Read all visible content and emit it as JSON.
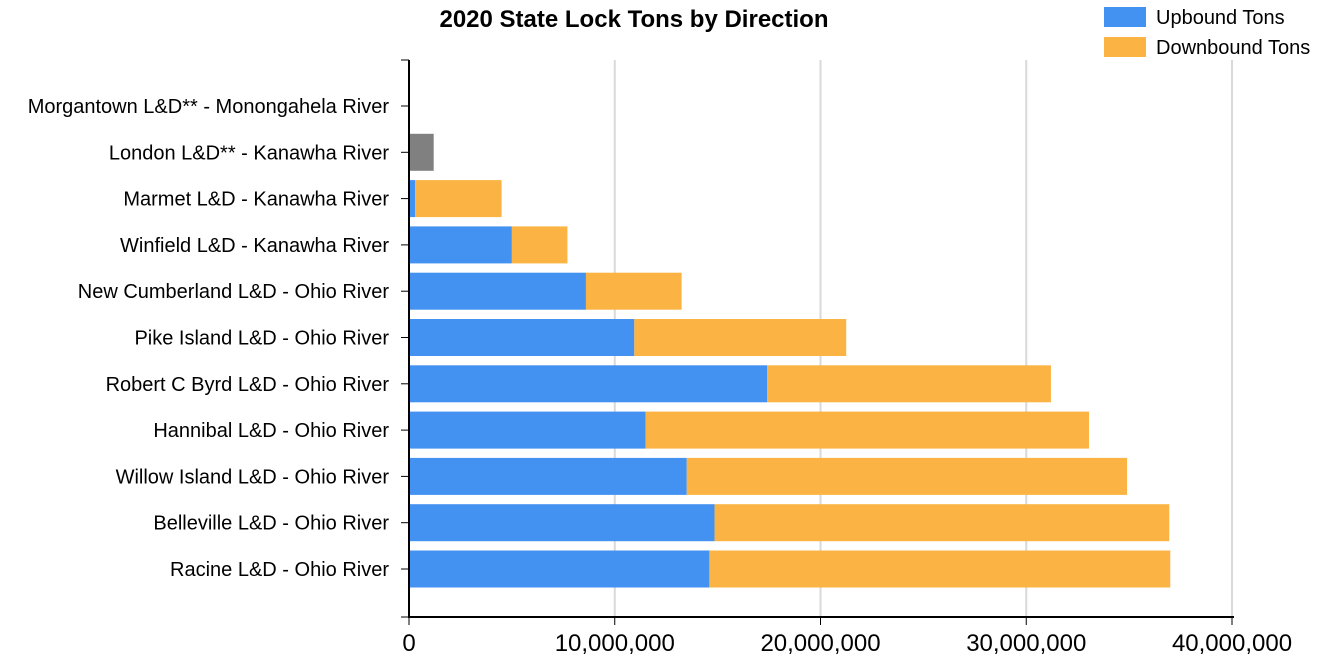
{
  "chart_data": {
    "type": "bar",
    "orientation": "horizontal",
    "stacked": true,
    "title": "2020 State Lock Tons by Direction",
    "xlabel": "",
    "ylabel": "",
    "xlim": [
      0,
      40000000
    ],
    "x_ticks": [
      0,
      10000000,
      20000000,
      30000000,
      40000000
    ],
    "x_tick_labels": [
      "0",
      "10,000,000",
      "20,000,000",
      "30,000,000",
      "40,000,000"
    ],
    "grid": "vertical",
    "legend_position": "top-right",
    "categories": [
      "Morgantown L&D** - Monongahela River",
      "London L&D** - Kanawha River",
      "Marmet L&D - Kanawha River",
      "Winfield L&D - Kanawha River",
      "New Cumberland L&D - Ohio River",
      "Pike Island L&D - Ohio River",
      "Robert C Byrd L&D - Ohio River",
      "Hannibal L&D - Ohio River",
      "Willow Island L&D - Ohio River",
      "Belleville L&D - Ohio River",
      "Racine L&D - Ohio River"
    ],
    "series": [
      {
        "name": "Upbound Tons",
        "color": "#4391f0",
        "values": [
          0,
          0,
          300000,
          5000000,
          8600000,
          10950000,
          17400000,
          11500000,
          13500000,
          14850000,
          14600000
        ]
      },
      {
        "name": "Downbound Tons",
        "color": "#fbb443",
        "values": [
          0,
          0,
          4200000,
          2700000,
          4650000,
          10300000,
          13800000,
          21550000,
          21400000,
          22100000,
          22400000
        ]
      }
    ],
    "unlabeled_bars": [
      {
        "category": "London L&D** - Kanawha River",
        "color": "#808080",
        "value": 1200000
      }
    ]
  }
}
